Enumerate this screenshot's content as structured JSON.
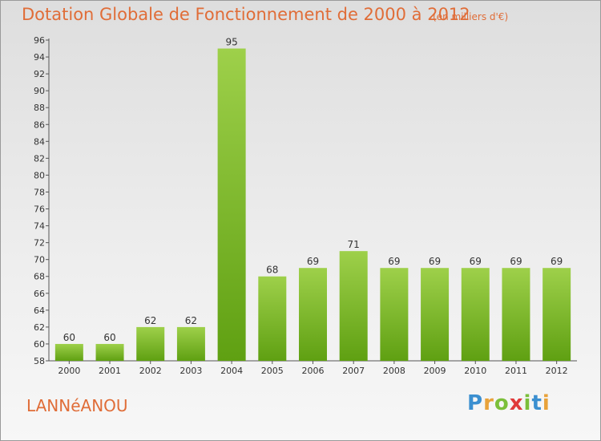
{
  "header": {
    "title": "Dotation Globale de Fonctionnement de 2000 à 2012",
    "unit": "(en milliers d'€)"
  },
  "footer": {
    "commune": "LANNéANOU",
    "brand_letters": [
      {
        "ch": "P",
        "color": "#3b8fd0"
      },
      {
        "ch": "r",
        "color": "#e8a23a"
      },
      {
        "ch": "o",
        "color": "#7bbf3a"
      },
      {
        "ch": "x",
        "color": "#e03a3a"
      },
      {
        "ch": "i",
        "color": "#7bbf3a"
      },
      {
        "ch": "t",
        "color": "#3b8fd0"
      },
      {
        "ch": "i",
        "color": "#e8a23a"
      }
    ]
  },
  "chart_data": {
    "type": "bar",
    "title": "Dotation Globale de Fonctionnement de 2000 à 2012",
    "subtitle": "(en milliers d'€)",
    "categories": [
      "2000",
      "2001",
      "2002",
      "2003",
      "2004",
      "2005",
      "2006",
      "2007",
      "2008",
      "2009",
      "2010",
      "2011",
      "2012"
    ],
    "values": [
      60,
      60,
      62,
      62,
      95,
      68,
      69,
      71,
      69,
      69,
      69,
      69,
      69
    ],
    "ylim": [
      58,
      96
    ],
    "yticks": [
      58,
      60,
      62,
      64,
      66,
      68,
      70,
      72,
      74,
      76,
      78,
      80,
      82,
      84,
      86,
      88,
      90,
      92,
      94,
      96
    ],
    "grid": false,
    "bar_color_top": "#9ed04a",
    "bar_color_bottom": "#5fa012"
  }
}
